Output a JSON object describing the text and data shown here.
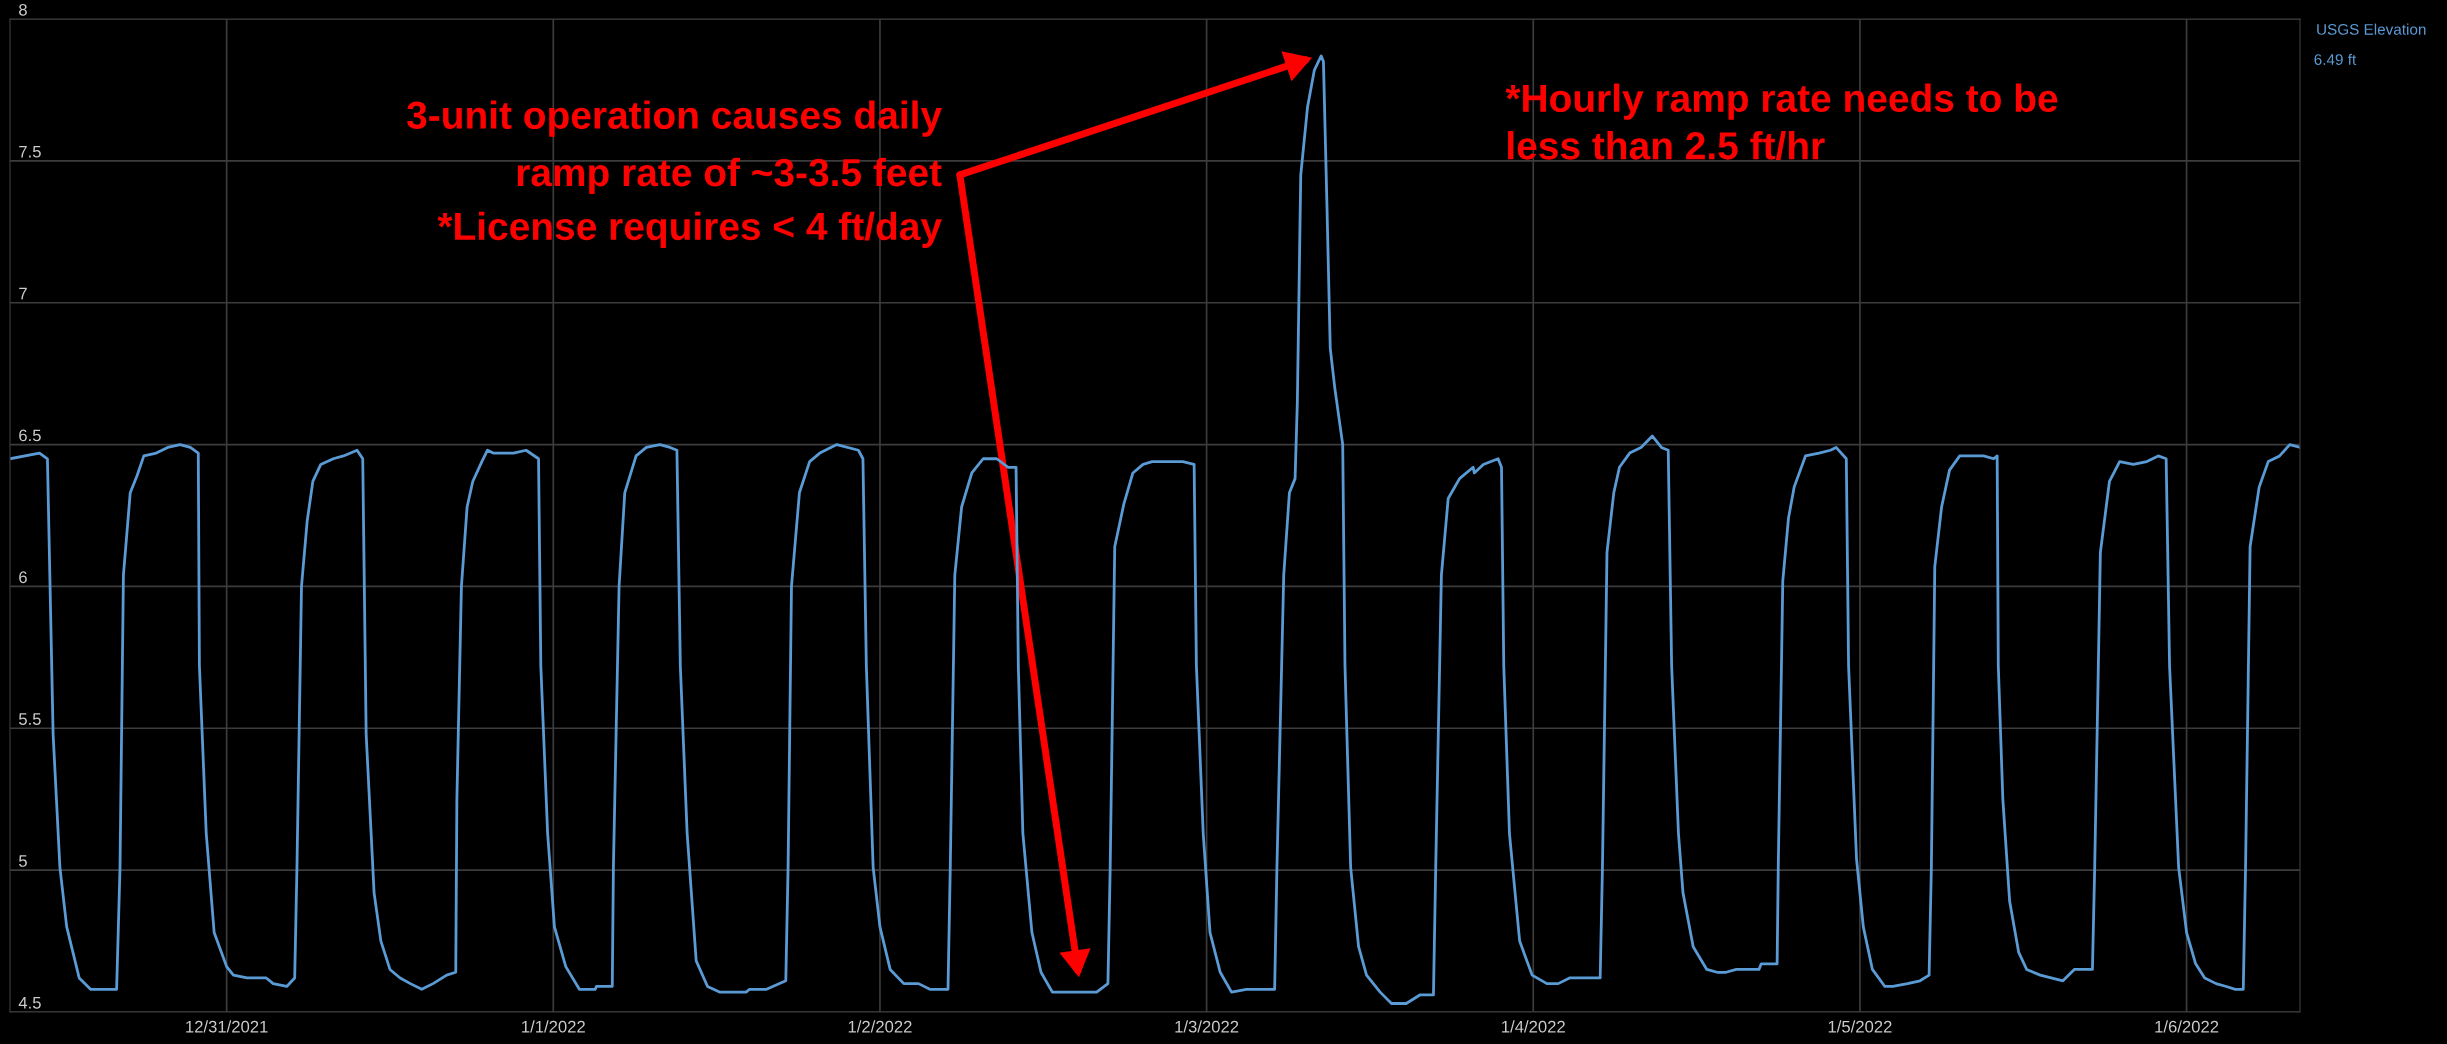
{
  "chart_data": {
    "type": "line",
    "xlim": [
      "2021-12-30T08:05",
      "2022-01-06T08:20"
    ],
    "xticks": [
      {
        "value": "2021-12-31",
        "label": "12/31/2021"
      },
      {
        "value": "2022-01-01",
        "label": "1/1/2022"
      },
      {
        "value": "2022-01-02",
        "label": "1/2/2022"
      },
      {
        "value": "2022-01-03",
        "label": "1/3/2022"
      },
      {
        "value": "2022-01-04",
        "label": "1/4/2022"
      },
      {
        "value": "2022-01-05",
        "label": "1/5/2022"
      },
      {
        "value": "2022-01-06",
        "label": "1/6/2022"
      }
    ],
    "ylim": [
      4.5,
      8
    ],
    "yticks": [
      4.5,
      5,
      5.5,
      6,
      6.5,
      7,
      7.5,
      8
    ],
    "grid": true,
    "legend": "top right",
    "marker": "none",
    "line_style": "solid",
    "series": [
      {
        "name": "USGS Elevation",
        "color": "#5b9bd5",
        "x": [
          "2021-12-30T08:05",
          "2021-12-30T10:15",
          "2021-12-30T10:50",
          "2021-12-30T11:15",
          "2021-12-30T11:45",
          "2021-12-30T12:15",
          "2021-12-30T13:10",
          "2021-12-30T14:00",
          "2021-12-30T15:55",
          "2021-12-30T16:10",
          "2021-12-30T16:25",
          "2021-12-30T16:55",
          "2021-12-30T17:25",
          "2021-12-30T17:55",
          "2021-12-30T18:50",
          "2021-12-30T19:40",
          "2021-12-30T20:35",
          "2021-12-30T21:20",
          "2021-12-30T21:55",
          "2021-12-30T22:00",
          "2021-12-30T22:30",
          "2021-12-30T23:05",
          "2021-12-31T00:00",
          "2021-12-31T00:30",
          "2021-12-31T01:30",
          "2021-12-31T02:55",
          "2021-12-31T03:25",
          "2021-12-31T04:25",
          "2021-12-31T05:00",
          "2021-12-31T05:10",
          "2021-12-31T05:30",
          "2021-12-31T05:55",
          "2021-12-31T06:20",
          "2021-12-31T06:55",
          "2021-12-31T07:50",
          "2021-12-31T08:35",
          "2021-12-31T09:35",
          "2021-12-31T10:00",
          "2021-12-31T10:15",
          "2021-12-31T10:50",
          "2021-12-31T11:20",
          "2021-12-31T12:00",
          "2021-12-31T12:45",
          "2021-12-31T13:30",
          "2021-12-31T14:20",
          "2021-12-31T15:10",
          "2021-12-31T16:10",
          "2021-12-31T16:50",
          "2021-12-31T16:55",
          "2021-12-31T17:15",
          "2021-12-31T17:40",
          "2021-12-31T18:05",
          "2021-12-31T18:45",
          "2021-12-31T19:10",
          "2021-12-31T19:35",
          "2021-12-31T21:05",
          "2021-12-31T22:00",
          "2021-12-31T22:55",
          "2021-12-31T23:05",
          "2021-12-31T23:35",
          "2022-01-01T00:05",
          "2022-01-01T00:55",
          "2022-01-01T01:55",
          "2022-01-01T03:05",
          "2022-01-01T03:10",
          "2022-01-01T04:20",
          "2022-01-01T04:25",
          "2022-01-01T04:50",
          "2022-01-01T05:15",
          "2022-01-01T06:05",
          "2022-01-01T06:50",
          "2022-01-01T07:50",
          "2022-01-01T08:35",
          "2022-01-01T09:05",
          "2022-01-01T09:20",
          "2022-01-01T09:50",
          "2022-01-01T10:30",
          "2022-01-01T11:20",
          "2022-01-01T12:15",
          "2022-01-01T14:10",
          "2022-01-01T14:25",
          "2022-01-01T15:40",
          "2022-01-01T17:05",
          "2022-01-01T17:15",
          "2022-01-01T17:30",
          "2022-01-01T18:05",
          "2022-01-01T18:50",
          "2022-01-01T19:35",
          "2022-01-01T20:50",
          "2022-01-01T22:25",
          "2022-01-01T22:45",
          "2022-01-01T23:00",
          "2022-01-01T23:30",
          "2022-01-02T00:00",
          "2022-01-02T00:45",
          "2022-01-02T01:45",
          "2022-01-02T02:50",
          "2022-01-02T03:40",
          "2022-01-02T05:00",
          "2022-01-02T05:10",
          "2022-01-02T05:30",
          "2022-01-02T06:00",
          "2022-01-02T06:45",
          "2022-01-02T07:35",
          "2022-01-02T08:35",
          "2022-01-02T09:25",
          "2022-01-02T10:00",
          "2022-01-02T10:10",
          "2022-01-02T10:30",
          "2022-01-02T11:10",
          "2022-01-02T11:50",
          "2022-01-02T12:40",
          "2022-01-02T15:55",
          "2022-01-02T16:45",
          "2022-01-02T16:55",
          "2022-01-02T17:15",
          "2022-01-02T17:55",
          "2022-01-02T18:35",
          "2022-01-02T19:20",
          "2022-01-02T20:00",
          "2022-01-02T22:15",
          "2022-01-02T23:05",
          "2022-01-02T23:15",
          "2022-01-02T23:45",
          "2022-01-03T00:15",
          "2022-01-03T01:00",
          "2022-01-03T01:50",
          "2022-01-03T02:55",
          "2022-01-03T05:00",
          "2022-01-03T05:10",
          "2022-01-03T05:40",
          "2022-01-03T06:05",
          "2022-01-03T06:30",
          "2022-01-03T06:40",
          "2022-01-03T06:55",
          "2022-01-03T07:25",
          "2022-01-03T07:55",
          "2022-01-03T08:25",
          "2022-01-03T08:35",
          "2022-01-03T08:50",
          "2022-01-03T09:05",
          "2022-01-03T09:25",
          "2022-01-03T10:00",
          "2022-01-03T10:10",
          "2022-01-03T10:35",
          "2022-01-03T11:10",
          "2022-01-03T11:45",
          "2022-01-03T12:45",
          "2022-01-03T13:35",
          "2022-01-03T14:40",
          "2022-01-03T15:40",
          "2022-01-03T16:40",
          "2022-01-03T16:50",
          "2022-01-03T17:15",
          "2022-01-03T17:45",
          "2022-01-03T18:35",
          "2022-01-03T19:35",
          "2022-01-03T19:40",
          "2022-01-03T20:20",
          "2022-01-03T21:25",
          "2022-01-03T21:40",
          "2022-01-03T21:50",
          "2022-01-03T22:15",
          "2022-01-03T23:00",
          "2022-01-03T23:55",
          "2022-01-04T01:00",
          "2022-01-04T01:50",
          "2022-01-04T02:40",
          "2022-01-04T04:55",
          "2022-01-04T05:05",
          "2022-01-04T05:25",
          "2022-01-04T05:55",
          "2022-01-04T06:20",
          "2022-01-04T07:05",
          "2022-01-04T07:55",
          "2022-01-04T08:45",
          "2022-01-04T09:25",
          "2022-01-04T09:55",
          "2022-01-04T10:10",
          "2022-01-04T10:40",
          "2022-01-04T11:00",
          "2022-01-04T11:45",
          "2022-01-04T12:45",
          "2022-01-04T13:30",
          "2022-01-04T14:10",
          "2022-01-04T14:55",
          "2022-01-04T16:35",
          "2022-01-04T16:45",
          "2022-01-04T17:55",
          "2022-01-04T18:00",
          "2022-01-04T18:20",
          "2022-01-04T18:45",
          "2022-01-04T19:10",
          "2022-01-04T20:00",
          "2022-01-04T21:00",
          "2022-01-04T21:50",
          "2022-01-04T22:15",
          "2022-01-04T23:00",
          "2022-01-04T23:10",
          "2022-01-04T23:45",
          "2022-01-05T00:15",
          "2022-01-05T00:55",
          "2022-01-05T01:50",
          "2022-01-05T02:25",
          "2022-01-05T03:30",
          "2022-01-05T04:25",
          "2022-01-05T05:05",
          "2022-01-05T05:15",
          "2022-01-05T05:30",
          "2022-01-05T06:00",
          "2022-01-05T06:35",
          "2022-01-05T07:20",
          "2022-01-05T09:05",
          "2022-01-05T09:50",
          "2022-01-05T10:05",
          "2022-01-05T10:10",
          "2022-01-05T10:30",
          "2022-01-05T11:00",
          "2022-01-05T11:40",
          "2022-01-05T12:15",
          "2022-01-05T13:15",
          "2022-01-05T14:55",
          "2022-01-05T15:45",
          "2022-01-05T17:05",
          "2022-01-05T17:15",
          "2022-01-05T17:40",
          "2022-01-05T18:20",
          "2022-01-05T19:05",
          "2022-01-05T20:05",
          "2022-01-05T21:05",
          "2022-01-05T21:55",
          "2022-01-05T22:30",
          "2022-01-05T22:45",
          "2022-01-05T23:25",
          "2022-01-06T00:00",
          "2022-01-06T00:40",
          "2022-01-06T01:20",
          "2022-01-06T02:10",
          "2022-01-06T02:55",
          "2022-01-06T03:35",
          "2022-01-06T04:10",
          "2022-01-06T04:20",
          "2022-01-06T04:40",
          "2022-01-06T05:20",
          "2022-01-06T06:00",
          "2022-01-06T06:50",
          "2022-01-06T07:35",
          "2022-01-06T08:20"
        ],
        "values": [
          6.45,
          6.47,
          6.45,
          5.48,
          5.01,
          4.8,
          4.62,
          4.58,
          4.58,
          5.01,
          6.04,
          6.33,
          6.39,
          6.46,
          6.47,
          6.49,
          6.5,
          6.49,
          6.47,
          5.72,
          5.13,
          4.78,
          4.66,
          4.63,
          4.62,
          4.62,
          4.6,
          4.59,
          4.62,
          5.01,
          6.0,
          6.23,
          6.37,
          6.43,
          6.45,
          6.46,
          6.48,
          6.45,
          5.48,
          4.92,
          4.75,
          4.65,
          4.62,
          4.6,
          4.58,
          4.6,
          4.63,
          4.64,
          5.25,
          6.0,
          6.28,
          6.37,
          6.44,
          6.48,
          6.47,
          6.47,
          6.48,
          6.45,
          5.72,
          5.13,
          4.8,
          4.66,
          4.58,
          4.58,
          4.59,
          4.59,
          5.01,
          6.0,
          6.33,
          6.46,
          6.49,
          6.5,
          6.49,
          6.48,
          5.72,
          5.13,
          4.68,
          4.59,
          4.57,
          4.57,
          4.58,
          4.58,
          4.61,
          5.01,
          6.0,
          6.33,
          6.44,
          6.47,
          6.5,
          6.48,
          6.45,
          5.72,
          5.01,
          4.8,
          4.65,
          4.6,
          4.6,
          4.58,
          4.58,
          5.01,
          6.04,
          6.28,
          6.4,
          6.45,
          6.45,
          6.42,
          6.42,
          5.72,
          5.13,
          4.78,
          4.64,
          4.57,
          4.57,
          4.6,
          5.01,
          6.14,
          6.29,
          6.4,
          6.43,
          6.44,
          6.44,
          6.43,
          5.72,
          5.13,
          4.78,
          4.64,
          4.57,
          4.58,
          4.58,
          5.01,
          6.04,
          6.33,
          6.38,
          6.65,
          7.45,
          7.69,
          7.82,
          7.87,
          7.85,
          7.36,
          6.84,
          6.7,
          6.5,
          5.72,
          5.01,
          4.73,
          4.63,
          4.57,
          4.53,
          4.53,
          4.56,
          4.56,
          5.01,
          6.04,
          6.31,
          6.38,
          6.42,
          6.4,
          6.43,
          6.45,
          6.42,
          5.72,
          5.13,
          4.75,
          4.63,
          4.6,
          4.6,
          4.62,
          4.62,
          5.01,
          6.12,
          6.33,
          6.42,
          6.47,
          6.49,
          6.53,
          6.49,
          6.48,
          5.72,
          5.13,
          4.92,
          4.73,
          4.65,
          4.64,
          4.64,
          4.65,
          4.65,
          4.67,
          4.67,
          5.01,
          6.02,
          6.24,
          6.35,
          6.46,
          6.47,
          6.48,
          6.49,
          6.45,
          5.72,
          5.04,
          4.8,
          4.65,
          4.59,
          4.59,
          4.6,
          4.61,
          4.63,
          5.01,
          6.07,
          6.28,
          6.41,
          6.46,
          6.46,
          6.45,
          6.46,
          5.72,
          5.25,
          4.89,
          4.71,
          4.65,
          4.63,
          4.61,
          4.65,
          4.65,
          5.01,
          6.12,
          6.37,
          6.44,
          6.43,
          6.44,
          6.46,
          6.45,
          5.72,
          5.01,
          4.78,
          4.67,
          4.62,
          4.6,
          4.59,
          4.58,
          4.58,
          5.01,
          6.14,
          6.35,
          6.44,
          6.46,
          6.5,
          6.49
        ]
      }
    ],
    "annotations": [
      "3-unit operation causes daily\nramp rate of ~3-3.5 feet",
      "*License requires < 4 ft/day",
      "*Hourly ramp rate needs to be\nless than 2.5 ft/hr",
      "6.49 ft"
    ]
  }
}
